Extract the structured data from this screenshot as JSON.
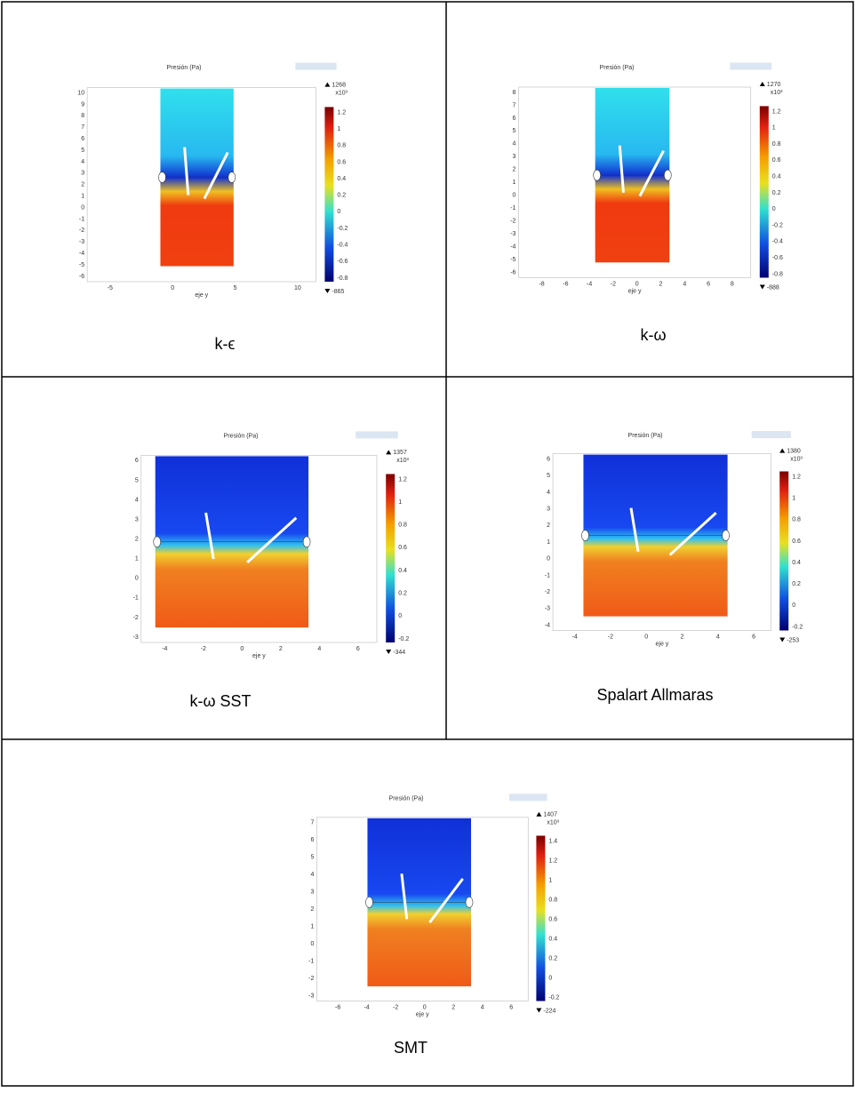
{
  "cells": [
    {
      "caption": "k-ϵ",
      "plot": {
        "title": "Presión (Pa)",
        "xlabel": "eje y",
        "yticks": [
          10,
          9,
          8,
          7,
          6,
          5,
          4,
          3,
          2,
          1,
          0,
          -1,
          -2,
          -3,
          -4,
          -5,
          -6
        ],
        "xticks": [
          -5,
          0,
          5,
          10
        ],
        "colorbar_max": 1268,
        "colorbar_min": -865,
        "colorbar_exponent": "x10³",
        "colorbar_ticks": [
          1.2,
          1,
          0.8,
          0.6,
          0.4,
          0.2,
          0,
          -0.2,
          -0.4,
          -0.6,
          -0.8
        ]
      }
    },
    {
      "caption": "k-ω",
      "plot": {
        "title": "Presión (Pa)",
        "xlabel": "eje y",
        "yticks": [
          8,
          7,
          6,
          5,
          4,
          3,
          2,
          1,
          0,
          -1,
          -2,
          -3,
          -4,
          -5,
          -6
        ],
        "xticks": [
          -8,
          -6,
          -4,
          -2,
          0,
          2,
          4,
          6,
          8
        ],
        "colorbar_max": 1270,
        "colorbar_min": -888,
        "colorbar_exponent": "x10³",
        "colorbar_ticks": [
          1.2,
          1,
          0.8,
          0.6,
          0.4,
          0.2,
          0,
          -0.2,
          -0.4,
          -0.6,
          -0.8
        ]
      }
    },
    {
      "caption": "k-ω SST",
      "plot": {
        "title": "Presión (Pa)",
        "xlabel": "eje y",
        "yticks": [
          6,
          5,
          4,
          3,
          2,
          1,
          0,
          -1,
          -2,
          -3
        ],
        "xticks": [
          -4,
          -2,
          0,
          2,
          4,
          6
        ],
        "colorbar_max": 1357,
        "colorbar_min": -344,
        "colorbar_exponent": "x10³",
        "colorbar_ticks": [
          1.2,
          1,
          0.8,
          0.6,
          0.4,
          0.2,
          0,
          -0.2
        ]
      }
    },
    {
      "caption": "Spalart Allmaras",
      "plot": {
        "title": "Presión (Pa)",
        "xlabel": "eje y",
        "yticks": [
          6,
          5,
          4,
          3,
          2,
          1,
          0,
          -1,
          -2,
          -3,
          -4
        ],
        "xticks": [
          -4,
          -2,
          0,
          2,
          4,
          6
        ],
        "colorbar_max": 1380,
        "colorbar_min": -253,
        "colorbar_exponent": "x10³",
        "colorbar_ticks": [
          1.2,
          1,
          0.8,
          0.6,
          0.4,
          0.2,
          0,
          -0.2
        ]
      }
    },
    {
      "caption": "SMT",
      "plot": {
        "title": "Presión (Pa)",
        "xlabel": "eje y",
        "yticks": [
          7,
          6,
          5,
          4,
          3,
          2,
          1,
          0,
          -1,
          -2,
          -3
        ],
        "xticks": [
          -6,
          -4,
          -2,
          0,
          2,
          4,
          6
        ],
        "colorbar_max": 1407,
        "colorbar_min": -224,
        "colorbar_exponent": "x10³",
        "colorbar_ticks": [
          1.4,
          1.2,
          1,
          0.8,
          0.6,
          0.4,
          0.2,
          0,
          -0.2
        ]
      }
    }
  ]
}
